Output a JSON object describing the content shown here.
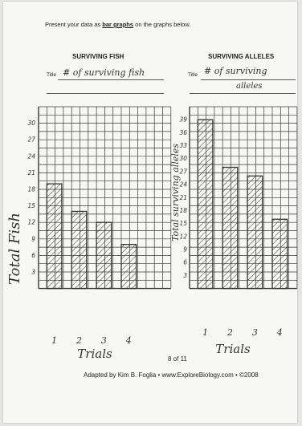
{
  "instruction": {
    "before": "Present your data as ",
    "emphasis": "bar graphs",
    "after": " on the graphs below."
  },
  "footer": {
    "page": "8 of 11",
    "credit": "Adapted by Kim B. Foglia • www.ExploreBiology.com • ©2008"
  },
  "chart_data": [
    {
      "type": "bar",
      "heading": "SURVIVING FISH",
      "title_label": "Title",
      "title": "# of surviving fish",
      "ylabel": "Total Fish",
      "xlabel": "Trials",
      "categories": [
        "1",
        "2",
        "3",
        "4"
      ],
      "values": [
        19,
        14,
        12,
        8
      ],
      "ylim": [
        0,
        33
      ],
      "yticks": [
        3,
        6,
        9,
        12,
        15,
        18,
        21,
        24,
        27,
        30
      ],
      "grid": true,
      "bar_color": "#333333"
    },
    {
      "type": "bar",
      "heading": "SURVIVING ALLELES",
      "title_label": "Title",
      "title_line1": "# of surviving",
      "title_line2": "alleles",
      "ylabel": "Total surviving alleles",
      "xlabel": "Trials",
      "categories": [
        "1",
        "2",
        "3",
        "4"
      ],
      "values": [
        39,
        28,
        26,
        16
      ],
      "ylim": [
        0,
        42
      ],
      "yticks": [
        3,
        6,
        9,
        12,
        15,
        18,
        21,
        24,
        27,
        30,
        33,
        36,
        39
      ],
      "grid": true,
      "bar_color": "#333333"
    }
  ]
}
